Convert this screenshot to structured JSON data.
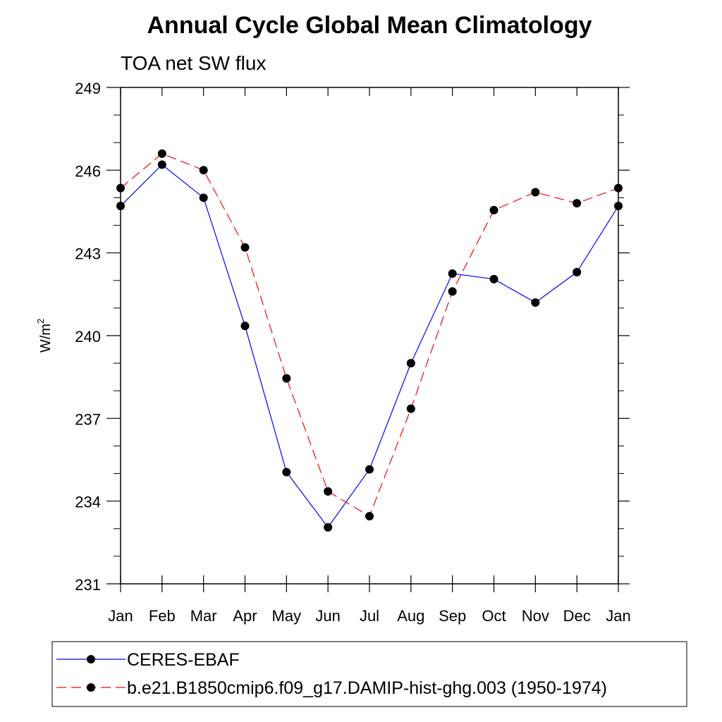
{
  "chart_data": {
    "type": "line",
    "title": "Annual Cycle Global Mean Climatology",
    "subtitle": "TOA net SW flux",
    "xlabel": "",
    "ylabel_main": "W/m",
    "ylabel_sup": "2",
    "categories": [
      "Jan",
      "Feb",
      "Mar",
      "Apr",
      "May",
      "Jun",
      "Jul",
      "Aug",
      "Sep",
      "Oct",
      "Nov",
      "Dec",
      "Jan"
    ],
    "ylim": [
      231,
      249
    ],
    "yticks": [
      231,
      234,
      237,
      240,
      243,
      246,
      249
    ],
    "grid": false,
    "legend_position": "bottom",
    "series": [
      {
        "name": "CERES-EBAF",
        "color": "#0000ff",
        "dash": "solid",
        "values": [
          244.7,
          246.2,
          245.0,
          240.35,
          235.05,
          233.05,
          235.15,
          239.0,
          242.25,
          242.05,
          241.2,
          242.3,
          244.7
        ]
      },
      {
        "name": "b.e21.B1850cmip6.f09_g17.DAMIP-hist-ghg.003 (1950-1974)",
        "color": "#ff0000",
        "dash": "dashed",
        "values": [
          245.35,
          246.6,
          246.0,
          243.2,
          238.45,
          234.35,
          233.45,
          237.35,
          241.6,
          244.55,
          245.2,
          244.8,
          245.35
        ]
      }
    ]
  }
}
